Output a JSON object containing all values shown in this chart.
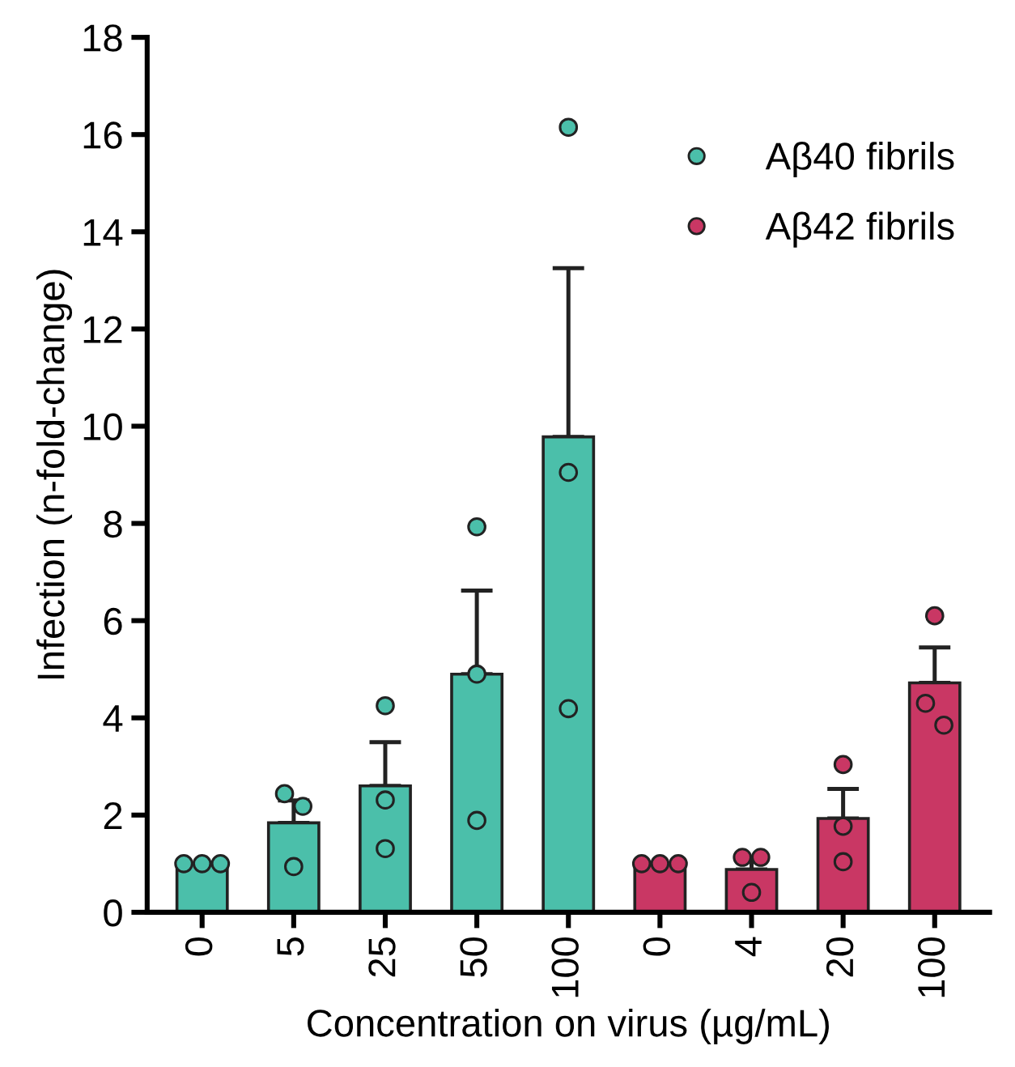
{
  "chart_data": {
    "type": "bar",
    "xlabel": "Concentration on virus (µg/mL)",
    "ylabel": "Infection (n-fold-change)",
    "categories": [
      "0",
      "5",
      "25",
      "50",
      "100",
      "0",
      "4",
      "20",
      "100"
    ],
    "ylim": [
      0,
      18
    ],
    "yticks": [
      0,
      2,
      4,
      6,
      8,
      10,
      12,
      14,
      16,
      18
    ],
    "grid": false,
    "legend": "top right",
    "marker": "circle",
    "series": [
      {
        "color": "#4bbfaa",
        "values": [
          1.0,
          1.84,
          2.6,
          4.9,
          9.78,
          null,
          null,
          null,
          null
        ],
        "errors": [
          null,
          [
            1.84,
            2.3
          ],
          [
            2.6,
            3.5
          ],
          [
            4.9,
            6.62
          ],
          [
            9.78,
            13.25
          ],
          null,
          null,
          null,
          null
        ]
      },
      {
        "color": "#c93764",
        "values": [
          null,
          null,
          null,
          null,
          null,
          1.0,
          0.88,
          1.93,
          4.72
        ],
        "errors": [
          null,
          null,
          null,
          null,
          null,
          null,
          [
            0.88,
            1.13
          ],
          [
            1.93,
            2.54
          ],
          [
            4.72,
            5.45
          ]
        ]
      },
      {
        "type": "scatter",
        "name": "Aβ40 fibrils",
        "color": "#4bbfaa",
        "values": [
          1.0,
          2.44,
          4.25,
          7.93,
          16.15,
          null,
          null,
          null,
          null
        ]
      },
      {
        "type": "scatter",
        "color": "#4bbfaa",
        "values": [
          1.0,
          0.94,
          2.31,
          4.9,
          9.05,
          null,
          null,
          null,
          null
        ]
      },
      {
        "type": "scatter",
        "color": "#4bbfaa",
        "values": [
          1.0,
          2.18,
          1.31,
          1.89,
          4.19,
          null,
          null,
          null,
          null
        ]
      },
      {
        "type": "scatter",
        "name": "Aβ42 fibrils",
        "color": "#c93764",
        "values": [
          null,
          null,
          null,
          null,
          null,
          1.0,
          1.13,
          3.04,
          6.1
        ]
      },
      {
        "type": "scatter",
        "color": "#c93764",
        "values": [
          null,
          null,
          null,
          null,
          null,
          1.0,
          0.41,
          1.77,
          4.3
        ]
      },
      {
        "type": "scatter",
        "color": "#c93764",
        "values": [
          null,
          null,
          null,
          null,
          null,
          1.0,
          1.13,
          1.04,
          3.85
        ]
      }
    ]
  }
}
